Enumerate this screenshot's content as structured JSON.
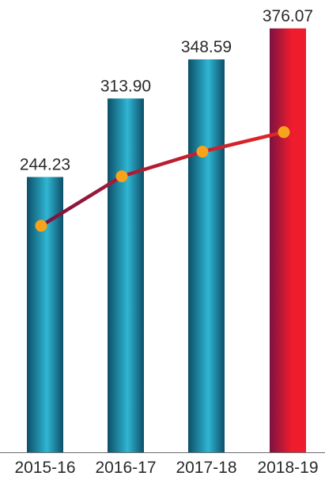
{
  "chart_data": {
    "type": "bar",
    "title": "",
    "xlabel": "",
    "ylabel": "",
    "categories": [
      "2015-16",
      "2016-17",
      "2017-18",
      "2018-19"
    ],
    "values": [
      244.23,
      313.9,
      348.59,
      376.07
    ],
    "value_labels": [
      "244.23",
      "313.90",
      "348.59",
      "376.07"
    ],
    "overlay_line": true,
    "colors": {
      "bar_default_dark": "#0d4f68",
      "bar_default_light": "#2fb6d3",
      "bar_highlight_dark": "#7a1242",
      "bar_highlight_light": "#ee1c2d",
      "line_start": "#7a1242",
      "line_end": "#e32626",
      "marker": "#f7a31c",
      "text": "#2a2a2a",
      "baseline": "#6b6b6b"
    }
  }
}
